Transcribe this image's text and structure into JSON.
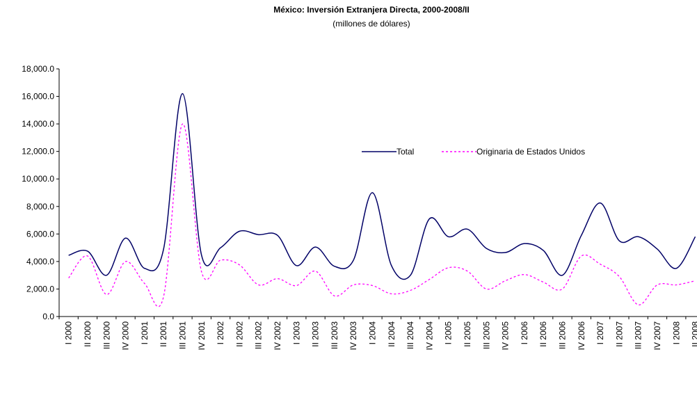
{
  "chart_data": {
    "type": "line",
    "title": "México: Inversión Extranjera Directa, 2000-2008/II",
    "subtitle": "(millones de dólares)",
    "categories": [
      "I 2000",
      "II 2000",
      "III 2000",
      "IV 2000",
      "I 2001",
      "II 2001",
      "III 2001",
      "IV 2001",
      "I 2002",
      "II 2002",
      "III 2002",
      "IV 2002",
      "I 2003",
      "II 2003",
      "III 2003",
      "IV 2003",
      "I 2004",
      "II 2004",
      "III 2004",
      "IV 2004",
      "I 2005",
      "II 2005",
      "III 2005",
      "IV 2005",
      "I 2006",
      "II 2006",
      "III 2006",
      "IV 2006",
      "I 2007",
      "II 2007",
      "III 2007",
      "IV 2007",
      "I 2008",
      "II 2008"
    ],
    "series": [
      {
        "name": "Total",
        "color": "#000066",
        "dash": false,
        "values": [
          4450,
          4750,
          3000,
          5700,
          3500,
          4900,
          16200,
          4450,
          5000,
          6200,
          5950,
          5900,
          3700,
          5050,
          3650,
          4100,
          9000,
          3700,
          3000,
          7100,
          5800,
          6350,
          4950,
          4650,
          5300,
          4800,
          3000,
          5900,
          8250,
          5500,
          5800,
          4900,
          3500,
          5800
        ]
      },
      {
        "name": "Originaria de Estados Unidos",
        "color": "#ff00ff",
        "dash": true,
        "values": [
          2800,
          4400,
          1600,
          4000,
          2400,
          1450,
          14000,
          3250,
          4100,
          3750,
          2300,
          2750,
          2250,
          3300,
          1500,
          2300,
          2250,
          1650,
          1900,
          2700,
          3550,
          3300,
          2000,
          2600,
          3050,
          2500,
          2000,
          4400,
          3800,
          2900,
          850,
          2300,
          2300,
          2600
        ]
      }
    ],
    "ylim": [
      0,
      18000
    ],
    "yticks": [
      {
        "value": 0,
        "label": "0.0"
      },
      {
        "value": 2000,
        "label": "2,000.0"
      },
      {
        "value": 4000,
        "label": "4,000.0"
      },
      {
        "value": 6000,
        "label": "6,000.0"
      },
      {
        "value": 8000,
        "label": "8,000.0"
      },
      {
        "value": 10000,
        "label": "10,000.0"
      },
      {
        "value": 12000,
        "label": "12,000.0"
      },
      {
        "value": 14000,
        "label": "14,000.0"
      },
      {
        "value": 16000,
        "label": "16,000.0"
      },
      {
        "value": 18000,
        "label": "18,000.0"
      }
    ],
    "grid": false
  }
}
